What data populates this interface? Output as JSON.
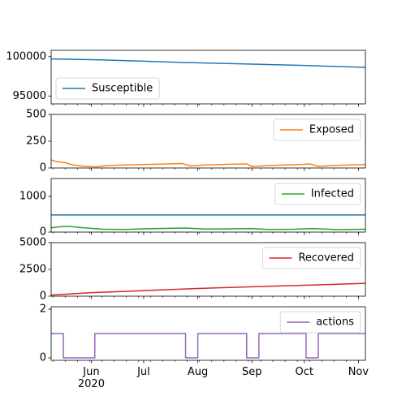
{
  "chart_data": {
    "type": "line",
    "x_axis": {
      "type": "date",
      "range": [
        "2020-05-09",
        "2020-11-05"
      ],
      "ticks": [
        {
          "date": "2020-06-01",
          "label": "Jun",
          "sublabel": "2020"
        },
        {
          "date": "2020-07-01",
          "label": "Jul",
          "sublabel": ""
        },
        {
          "date": "2020-08-01",
          "label": "Aug",
          "sublabel": ""
        },
        {
          "date": "2020-09-01",
          "label": "Sep",
          "sublabel": ""
        },
        {
          "date": "2020-10-01",
          "label": "Oct",
          "sublabel": ""
        },
        {
          "date": "2020-11-01",
          "label": "Nov",
          "sublabel": ""
        }
      ]
    },
    "grid": false,
    "panels": [
      {
        "series": [
          {
            "name": "Susceptible",
            "color": "#1f77b4",
            "points": [
              [
                "2020-05-09",
                99700
              ],
              [
                "2020-06-01",
                99620
              ],
              [
                "2020-07-01",
                99420
              ],
              [
                "2020-07-25",
                99240
              ],
              [
                "2020-08-01",
                99210
              ],
              [
                "2020-09-01",
                99050
              ],
              [
                "2020-10-01",
                98880
              ],
              [
                "2020-11-05",
                98640
              ]
            ]
          }
        ],
        "ylim": [
          94000,
          100800
        ],
        "yticks": [
          {
            "value": 95000,
            "label": "95000"
          },
          {
            "value": 100000,
            "label": "100000"
          }
        ],
        "legend_loc": "lower-left"
      },
      {
        "series": [
          {
            "name": "Exposed",
            "color": "#ff7f0e",
            "points": [
              [
                "2020-05-09",
                75
              ],
              [
                "2020-05-12",
                60
              ],
              [
                "2020-05-17",
                50
              ],
              [
                "2020-05-21",
                30
              ],
              [
                "2020-05-28",
                15
              ],
              [
                "2020-06-04",
                10
              ],
              [
                "2020-06-10",
                22
              ],
              [
                "2020-06-20",
                28
              ],
              [
                "2020-07-01",
                32
              ],
              [
                "2020-07-15",
                38
              ],
              [
                "2020-07-23",
                42
              ],
              [
                "2020-07-28",
                18
              ],
              [
                "2020-08-05",
                28
              ],
              [
                "2020-08-20",
                35
              ],
              [
                "2020-08-29",
                38
              ],
              [
                "2020-09-01",
                14
              ],
              [
                "2020-09-10",
                22
              ],
              [
                "2020-09-20",
                28
              ],
              [
                "2020-10-01",
                34
              ],
              [
                "2020-10-04",
                38
              ],
              [
                "2020-10-09",
                15
              ],
              [
                "2020-10-20",
                25
              ],
              [
                "2020-11-05",
                32
              ]
            ]
          }
        ],
        "ylim": [
          0,
          500
        ],
        "yticks": [
          {
            "value": 0,
            "label": "0"
          },
          {
            "value": 250,
            "label": "250"
          },
          {
            "value": 500,
            "label": "500"
          }
        ],
        "legend_loc": "upper-right"
      },
      {
        "series": [
          {
            "name": "Infected",
            "color": "#2ca02c",
            "points": [
              [
                "2020-05-09",
                120
              ],
              [
                "2020-05-14",
                150
              ],
              [
                "2020-05-19",
                160
              ],
              [
                "2020-05-28",
                120
              ],
              [
                "2020-06-08",
                80
              ],
              [
                "2020-06-20",
                75
              ],
              [
                "2020-07-01",
                90
              ],
              [
                "2020-07-25",
                115
              ],
              [
                "2020-08-05",
                85
              ],
              [
                "2020-08-20",
                90
              ],
              [
                "2020-09-01",
                100
              ],
              [
                "2020-09-10",
                75
              ],
              [
                "2020-09-25",
                80
              ],
              [
                "2020-10-06",
                98
              ],
              [
                "2020-10-20",
                70
              ],
              [
                "2020-11-05",
                80
              ]
            ]
          },
          {
            "name": "",
            "color": "#1f77b4",
            "points": [
              [
                "2020-05-09",
                480
              ],
              [
                "2020-11-05",
                480
              ]
            ]
          }
        ],
        "ylim": [
          0,
          1500
        ],
        "yticks": [
          {
            "value": 0,
            "label": "0"
          },
          {
            "value": 1000,
            "label": "1000"
          }
        ],
        "legend_loc": "upper-right"
      },
      {
        "series": [
          {
            "name": "Recovered",
            "color": "#d62728",
            "points": [
              [
                "2020-05-09",
                100
              ],
              [
                "2020-06-01",
                330
              ],
              [
                "2020-07-01",
                520
              ],
              [
                "2020-08-01",
                720
              ],
              [
                "2020-09-01",
                880
              ],
              [
                "2020-10-01",
                1020
              ],
              [
                "2020-11-05",
                1200
              ]
            ]
          }
        ],
        "ylim": [
          0,
          5000
        ],
        "yticks": [
          {
            "value": 0,
            "label": "0"
          },
          {
            "value": 2500,
            "label": "2500"
          },
          {
            "value": 5000,
            "label": "5000"
          }
        ],
        "legend_loc": "upper-right"
      },
      {
        "series": [
          {
            "name": "actions",
            "color": "#9467bd",
            "step": true,
            "points": [
              [
                "2020-05-09",
                1
              ],
              [
                "2020-05-16",
                0
              ],
              [
                "2020-06-03",
                1
              ],
              [
                "2020-07-25",
                0
              ],
              [
                "2020-08-01",
                1
              ],
              [
                "2020-08-29",
                0
              ],
              [
                "2020-09-05",
                1
              ],
              [
                "2020-10-02",
                0
              ],
              [
                "2020-10-09",
                1
              ],
              [
                "2020-11-05",
                1
              ]
            ]
          }
        ],
        "ylim": [
          -0.1,
          2.1
        ],
        "yticks": [
          {
            "value": 0,
            "label": "0"
          },
          {
            "value": 2,
            "label": "2"
          }
        ],
        "legend_loc": "upper-right"
      }
    ]
  }
}
